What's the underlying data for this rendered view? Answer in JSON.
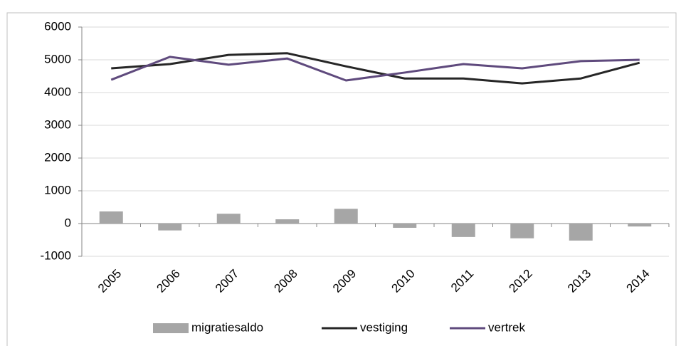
{
  "chart_data": {
    "type": "bar-line",
    "categories": [
      "2005",
      "2006",
      "2007",
      "2008",
      "2009",
      "2010",
      "2011",
      "2012",
      "2013",
      "2014"
    ],
    "series": [
      {
        "name": "migratiesaldo",
        "type": "bar",
        "color": "#a6a6a6",
        "values": [
          370,
          -210,
          300,
          130,
          450,
          -130,
          -410,
          -450,
          -520,
          -90
        ]
      },
      {
        "name": "vestiging",
        "type": "line",
        "color": "#262626",
        "values": [
          4740,
          4870,
          5150,
          5200,
          4800,
          4430,
          4430,
          4280,
          4430,
          4910
        ]
      },
      {
        "name": "vertrek",
        "type": "line",
        "color": "#5f4a7d",
        "values": [
          4390,
          5090,
          4850,
          5040,
          4370,
          4610,
          4870,
          4740,
          4960,
          5000
        ]
      }
    ],
    "ylim": [
      -1000,
      6000
    ],
    "yticks": [
      -1000,
      0,
      1000,
      2000,
      3000,
      4000,
      5000,
      6000
    ],
    "grid": true,
    "legend": "bottom"
  }
}
